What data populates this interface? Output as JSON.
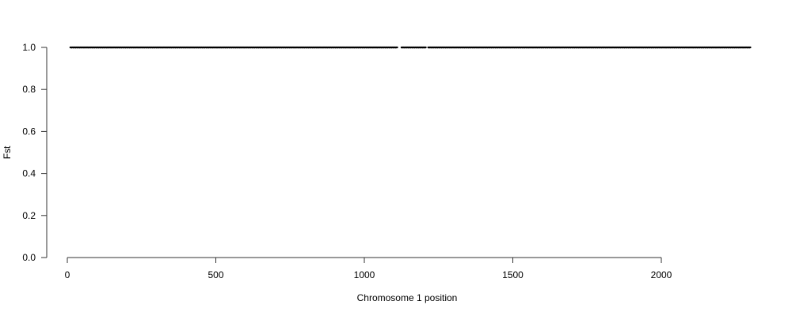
{
  "chart_data": {
    "type": "scatter",
    "title": "",
    "xlabel": "Chromosome 1 position",
    "ylabel": "Fst",
    "xlim": [
      0,
      2300
    ],
    "ylim": [
      0,
      1
    ],
    "x_ticks": [
      0,
      500,
      1000,
      1500,
      2000
    ],
    "x_tick_labels": [
      "0",
      "500",
      "1000",
      "1500",
      "2000"
    ],
    "y_ticks": [
      0,
      0.2,
      0.4,
      0.6,
      0.8,
      1.0
    ],
    "y_tick_labels": [
      "0.0",
      "0.2",
      "0.4",
      "0.6",
      "0.8",
      "1.0"
    ],
    "grid": false,
    "point_color": "#000000",
    "series": [
      {
        "x_range": [
          10,
          2300
        ],
        "y_value": 1.0,
        "gaps": [
          [
            1112,
            1124
          ],
          [
            1208,
            1214
          ]
        ]
      }
    ]
  }
}
